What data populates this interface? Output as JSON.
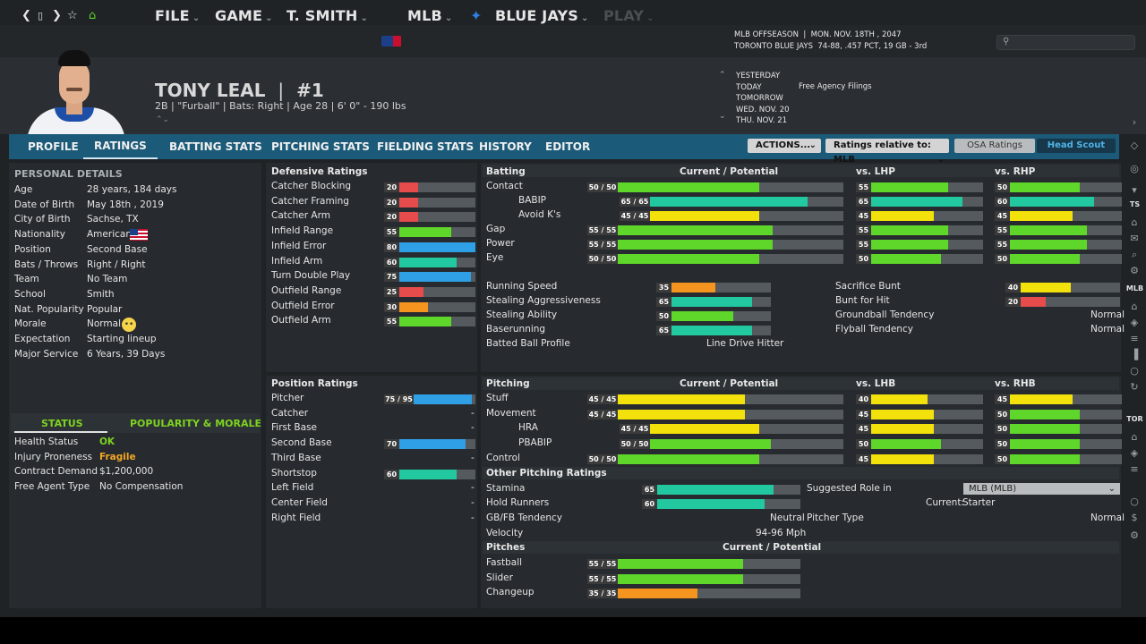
{
  "nav": {
    "file": "FILE",
    "game": "GAME",
    "manager": "T. SMITH",
    "league": "MLB",
    "team": "BLUE JAYS",
    "play": "PLAY"
  },
  "season": {
    "line1_left": "MLB OFFSEASON",
    "line1_right": "MON. NOV. 18TH , 2047",
    "line2_left": "TORONTO BLUE JAYS",
    "line2_right": "74-88, .457 PCT, 19 GB - 3rd"
  },
  "calendar": {
    "days": [
      "YESTERDAY",
      "TODAY",
      "TOMORROW",
      "WED. NOV. 20",
      "THU. NOV. 21"
    ],
    "today_event": "Free Agency Filings"
  },
  "player": {
    "name": "TONY LEAL",
    "sep": "|",
    "number": "#1",
    "desc": "2B | \"Furball\" | Bats: Right  |  Age 28  |  6' 0\"  - 190 lbs"
  },
  "tabs": [
    "PROFILE",
    "RATINGS",
    "BATTING STATS",
    "PITCHING STATS",
    "FIELDING STATS",
    "HISTORY",
    "EDITOR"
  ],
  "toolbar": {
    "actions": "ACTIONS...",
    "relative": "Ratings relative to: MLB",
    "osa": "OSA Ratings",
    "scout": "Head Scout"
  },
  "personal": {
    "title": "PERSONAL DETAILS",
    "rows": [
      {
        "label": "Age",
        "value": "28 years, 184 days"
      },
      {
        "label": "Date of Birth",
        "value": "May 18th , 2019"
      },
      {
        "label": "City of Birth",
        "value": "Sachse, TX"
      },
      {
        "label": "Nationality",
        "value": "American"
      },
      {
        "label": "Position",
        "value": "Second Base"
      },
      {
        "label": "Bats / Throws",
        "value": "Right / Right"
      },
      {
        "label": "Team",
        "value": "No Team"
      },
      {
        "label": "School",
        "value": "Smith"
      },
      {
        "label": "Nat. Popularity",
        "value": "Popular"
      },
      {
        "label": "Morale",
        "value": "Normal"
      },
      {
        "label": "Expectation",
        "value": "Starting lineup"
      },
      {
        "label": "Major Service",
        "value": "6 Years, 39 Days"
      }
    ]
  },
  "status": {
    "tab1": "STATUS",
    "tab2": "POPULARITY & MORALE",
    "rows": [
      {
        "label": "Health Status",
        "value": "OK",
        "color": "#7ed321"
      },
      {
        "label": "Injury Proneness",
        "value": "Fragile",
        "color": "#f5a623"
      },
      {
        "label": "Contract Demand",
        "value": "$1,200,000",
        "color": "#e4e4e4"
      },
      {
        "label": "Free Agent Type",
        "value": "No Compensation",
        "color": "#e4e4e4"
      }
    ]
  },
  "defensive": {
    "title": "Defensive Ratings",
    "rows": [
      {
        "label": "Catcher Blocking",
        "value": "20",
        "pct": 20,
        "color": "#e74c4c"
      },
      {
        "label": "Catcher Framing",
        "value": "20",
        "pct": 20,
        "color": "#e74c4c"
      },
      {
        "label": "Catcher Arm",
        "value": "20",
        "pct": 20,
        "color": "#e74c4c"
      },
      {
        "label": "Infield Range",
        "value": "55",
        "pct": 55,
        "color": "#5ed62a"
      },
      {
        "label": "Infield Error",
        "value": "80",
        "pct": 80,
        "color": "#2f9fe6"
      },
      {
        "label": "Infield Arm",
        "value": "60",
        "pct": 60,
        "color": "#22c9a0"
      },
      {
        "label": "Turn Double Play",
        "value": "75",
        "pct": 75,
        "color": "#2f9fe6"
      },
      {
        "label": "Outfield Range",
        "value": "25",
        "pct": 25,
        "color": "#e74c4c"
      },
      {
        "label": "Outfield Error",
        "value": "30",
        "pct": 30,
        "color": "#f5941e"
      },
      {
        "label": "Outfield Arm",
        "value": "55",
        "pct": 55,
        "color": "#5ed62a"
      }
    ]
  },
  "positions": {
    "title": "Position Ratings",
    "rows": [
      {
        "label": "Pitcher",
        "value": "75 / 95",
        "pct": 75,
        "color": "#2f9fe6"
      },
      {
        "label": "Catcher",
        "value": "-"
      },
      {
        "label": "First Base",
        "value": "-"
      },
      {
        "label": "Second Base",
        "value": "70",
        "pct": 70,
        "color": "#2f9fe6"
      },
      {
        "label": "Third Base",
        "value": "-"
      },
      {
        "label": "Shortstop",
        "value": "60",
        "pct": 60,
        "color": "#22c9a0"
      },
      {
        "label": "Left Field",
        "value": "-"
      },
      {
        "label": "Center Field",
        "value": "-"
      },
      {
        "label": "Right Field",
        "value": "-"
      }
    ]
  },
  "batting": {
    "title": "Batting",
    "col_current": "Current / Potential",
    "col_lhp": "vs. LHP",
    "col_rhp": "vs. RHP",
    "rows": [
      {
        "label": "Contact",
        "indent": false,
        "cp": "50 / 50",
        "pct": 50,
        "lhp": "55",
        "lhp_pct": 55,
        "rhp": "50",
        "rhp_pct": 50
      },
      {
        "label": "BABIP",
        "indent": true,
        "cp": "65 / 65",
        "pct": 65,
        "lhp": "65",
        "lhp_pct": 65,
        "rhp": "60",
        "rhp_pct": 60
      },
      {
        "label": "Avoid K's",
        "indent": true,
        "cp": "45 / 45",
        "pct": 45,
        "lhp": "45",
        "lhp_pct": 45,
        "rhp": "45",
        "rhp_pct": 45
      },
      {
        "label": "Gap",
        "indent": false,
        "cp": "55 / 55",
        "pct": 55,
        "lhp": "55",
        "lhp_pct": 55,
        "rhp": "55",
        "rhp_pct": 55
      },
      {
        "label": "Power",
        "indent": false,
        "cp": "55 / 55",
        "pct": 55,
        "lhp": "55",
        "lhp_pct": 55,
        "rhp": "55",
        "rhp_pct": 55
      },
      {
        "label": "Eye",
        "indent": false,
        "cp": "50 / 50",
        "pct": 50,
        "lhp": "50",
        "lhp_pct": 50,
        "rhp": "50",
        "rhp_pct": 50
      }
    ]
  },
  "running": {
    "left": [
      {
        "label": "Running Speed",
        "value": "35",
        "pct": 35
      },
      {
        "label": "Stealing Aggressiveness",
        "value": "65",
        "pct": 65
      },
      {
        "label": "Stealing Ability",
        "value": "50",
        "pct": 50
      },
      {
        "label": "Baserunning",
        "value": "65",
        "pct": 65
      }
    ],
    "profile_label": "Batted Ball Profile",
    "profile_value": "Line Drive Hitter",
    "right": [
      {
        "label": "Sacrifice Bunt",
        "value": "40",
        "pct": 40
      },
      {
        "label": "Bunt for Hit",
        "value": "20",
        "pct": 20
      },
      {
        "label": "Groundball Tendency",
        "text": "Normal"
      },
      {
        "label": "Flyball Tendency",
        "text": "Normal"
      }
    ]
  },
  "pitching": {
    "title": "Pitching",
    "col_current": "Current / Potential",
    "col_lhb": "vs. LHB",
    "col_rhb": "vs. RHB",
    "rows": [
      {
        "label": "Stuff",
        "indent": false,
        "cp": "45 / 45",
        "pct": 45,
        "lhb": "40",
        "lhb_pct": 40,
        "rhb": "45",
        "rhb_pct": 45
      },
      {
        "label": "Movement",
        "indent": false,
        "cp": "45 / 45",
        "pct": 45,
        "lhb": "45",
        "lhb_pct": 45,
        "rhb": "50",
        "rhb_pct": 50
      },
      {
        "label": "HRA",
        "indent": true,
        "cp": "45 / 45",
        "pct": 45,
        "lhb": "45",
        "lhb_pct": 45,
        "rhb": "50",
        "rhb_pct": 50
      },
      {
        "label": "PBABIP",
        "indent": true,
        "cp": "50 / 50",
        "pct": 50,
        "lhb": "50",
        "lhb_pct": 50,
        "rhb": "50",
        "rhb_pct": 50
      },
      {
        "label": "Control",
        "indent": false,
        "cp": "50 / 50",
        "pct": 50,
        "lhb": "45",
        "lhb_pct": 45,
        "rhb": "50",
        "rhb_pct": 50
      }
    ],
    "other_title": "Other Pitching Ratings",
    "stamina_label": "Stamina",
    "stamina": "65",
    "stamina_pct": 65,
    "hold_label": "Hold Runners",
    "hold": "60",
    "hold_pct": 60,
    "gbfb_label": "GB/FB Tendency",
    "gbfb": "Neutral",
    "velo_label": "Velocity",
    "velo": "94-96 Mph",
    "role_label": "Suggested Role in",
    "role_select": "MLB (MLB)",
    "current_label": "Current:",
    "current_value": "Starter",
    "ptype_label": "Pitcher Type",
    "ptype_value": "Normal",
    "pitches_title": "Pitches",
    "pitches_col": "Current / Potential",
    "pitches": [
      {
        "label": "Fastball",
        "cp": "55 / 55",
        "pct": 55
      },
      {
        "label": "Slider",
        "cp": "55 / 55",
        "pct": 55
      },
      {
        "label": "Changeup",
        "cp": "35 / 35",
        "pct": 35
      }
    ]
  },
  "sidebar": {
    "labels": [
      "TS",
      "MLB",
      "TOR"
    ]
  },
  "colors": {
    "accent": "#1b5a78",
    "panel": "#272b2f",
    "tab_active": "#cfe8f5"
  }
}
